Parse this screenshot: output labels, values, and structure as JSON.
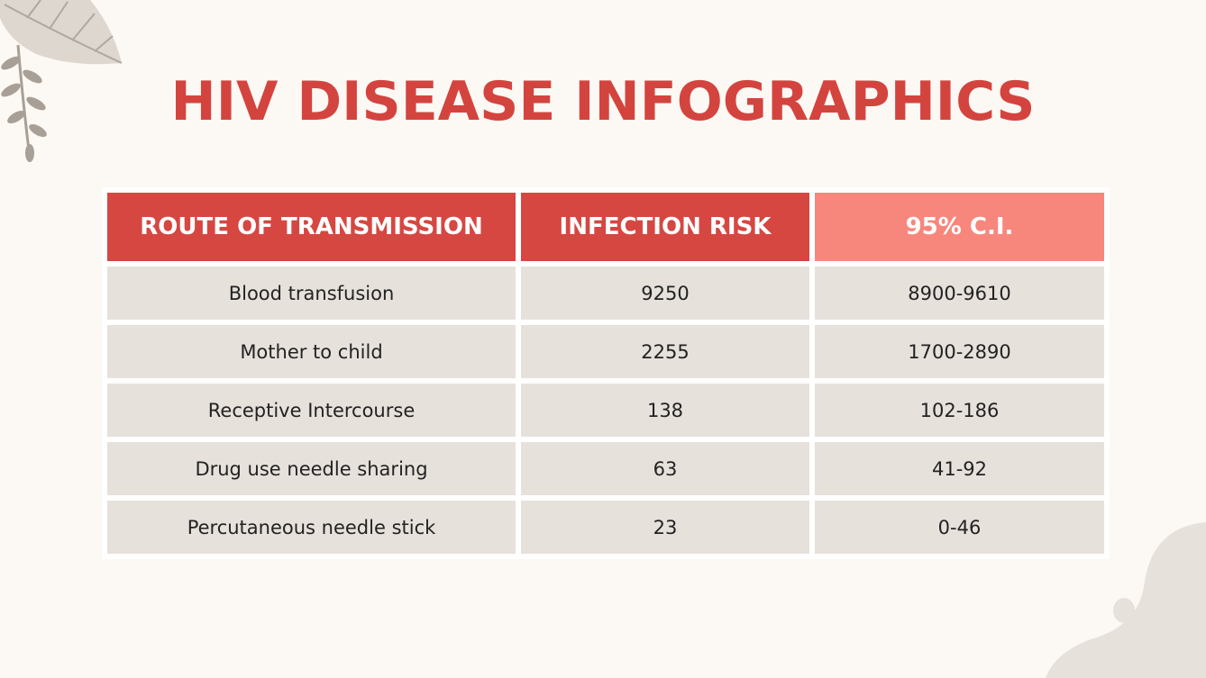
{
  "title": "HIV DISEASE INFOGRAPHICS",
  "colors": {
    "background": "#fcf9f4",
    "accent_red": "#d64742",
    "accent_salmon": "#f7877c",
    "cell": "#e7e1dc"
  },
  "table": {
    "headers": [
      "ROUTE OF TRANSMISSION",
      "INFECTION RISK",
      "95% C.I."
    ],
    "rows": [
      [
        "Blood transfusion",
        "9250",
        "8900-9610"
      ],
      [
        "Mother to child",
        "2255",
        "1700-2890"
      ],
      [
        "Receptive Intercourse",
        "138",
        "102-186"
      ],
      [
        "Drug use needle sharing",
        "63",
        "41-92"
      ],
      [
        "Percutaneous needle stick",
        "23",
        "0-46"
      ]
    ]
  }
}
